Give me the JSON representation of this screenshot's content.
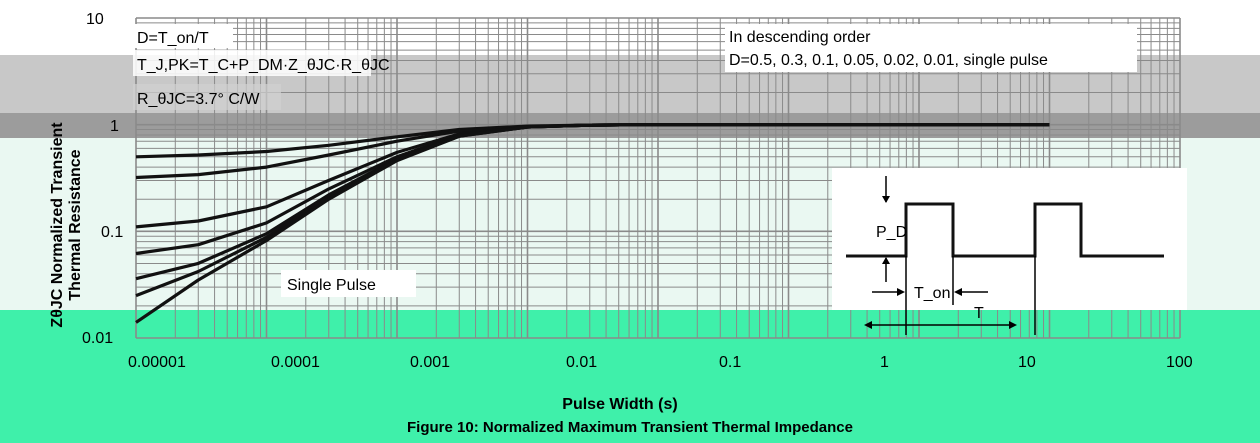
{
  "chart_data": {
    "type": "line",
    "title": "",
    "caption": "Figure 10: Normalized Maximum Transient Thermal Impedance",
    "xlabel": "Pulse Width (s)",
    "ylabel_line1": "ZθJC Normalized Transient",
    "ylabel_line2": "Thermal Resistance",
    "x_scale": "log",
    "y_scale": "log",
    "xlim": [
      1e-05,
      1000
    ],
    "ylim": [
      0.01,
      10
    ],
    "x_tick_labels": [
      "0.00001",
      "0.0001",
      "0.001",
      "0.01",
      "0.1",
      "1",
      "10",
      "100"
    ],
    "x_tick_values": [
      1e-05,
      0.0001,
      0.001,
      0.01,
      0.1,
      1,
      10,
      100
    ],
    "y_tick_labels": [
      "0.01",
      "0.1",
      "1",
      "10"
    ],
    "y_tick_values": [
      0.01,
      0.1,
      1,
      10
    ],
    "grid": true,
    "annotations": {
      "duty_definition": "D=T_on/T",
      "junction_formula": "T_J,PK=T_C+P_DM·Z_θJC·R_θJC",
      "r_theta": "R_θJC=3.7° C/W",
      "order_line1": "In descending order",
      "order_line2": "D=0.5, 0.3, 0.1, 0.05, 0.02, 0.01, single pulse",
      "single_pulse": "Single Pulse",
      "pd_label": "P_D",
      "ton_label": "T_on",
      "t_label": "T"
    },
    "series": [
      {
        "x": [
          1e-05,
          3e-05,
          0.0001,
          0.0003,
          0.001,
          0.003,
          0.01,
          0.03,
          0.1,
          1,
          10,
          100
        ],
        "y": [
          0.5,
          0.52,
          0.56,
          0.64,
          0.77,
          0.9,
          0.97,
          0.99,
          1.0,
          1.0,
          1.0,
          1.0
        ]
      },
      {
        "x": [
          1e-05,
          3e-05,
          0.0001,
          0.0003,
          0.001,
          0.003,
          0.01,
          0.03,
          0.1,
          1,
          10,
          100
        ],
        "y": [
          0.32,
          0.34,
          0.4,
          0.52,
          0.7,
          0.87,
          0.96,
          0.99,
          1.0,
          1.0,
          1.0,
          1.0
        ]
      },
      {
        "x": [
          1e-05,
          3e-05,
          0.0001,
          0.0003,
          0.001,
          0.003,
          0.01,
          0.03,
          0.1,
          1,
          10,
          100
        ],
        "y": [
          0.11,
          0.125,
          0.17,
          0.3,
          0.55,
          0.82,
          0.95,
          0.99,
          1.0,
          1.0,
          1.0,
          1.0
        ]
      },
      {
        "x": [
          1e-05,
          3e-05,
          0.0001,
          0.0003,
          0.001,
          0.003,
          0.01,
          0.03,
          0.1,
          1,
          10,
          100
        ],
        "y": [
          0.062,
          0.075,
          0.12,
          0.25,
          0.5,
          0.8,
          0.95,
          0.99,
          1.0,
          1.0,
          1.0,
          1.0
        ]
      },
      {
        "x": [
          1e-05,
          3e-05,
          0.0001,
          0.0003,
          0.001,
          0.003,
          0.01,
          0.03,
          0.1,
          1,
          10,
          100
        ],
        "y": [
          0.036,
          0.05,
          0.095,
          0.22,
          0.48,
          0.79,
          0.95,
          0.99,
          1.0,
          1.0,
          1.0,
          1.0
        ]
      },
      {
        "x": [
          1e-05,
          3e-05,
          0.0001,
          0.0003,
          0.001,
          0.003,
          0.01,
          0.03,
          0.1,
          1,
          10,
          100
        ],
        "y": [
          0.025,
          0.042,
          0.088,
          0.21,
          0.47,
          0.78,
          0.95,
          0.99,
          1.0,
          1.0,
          1.0,
          1.0
        ]
      },
      {
        "x": [
          1e-05,
          3e-05,
          0.0001,
          0.0003,
          0.001,
          0.003,
          0.01,
          0.03,
          0.1,
          1,
          10,
          100
        ],
        "y": [
          0.014,
          0.035,
          0.082,
          0.2,
          0.46,
          0.78,
          0.95,
          0.99,
          1.0,
          1.0,
          1.0,
          1.0
        ]
      }
    ],
    "colors": {
      "curve": "#111111",
      "grid": "#8a8a8a",
      "band_top": "#bdbdbd",
      "band_mid": "#d9d9d9",
      "band_bottom": "#3df0a8",
      "band_pale": "#e8f7f0"
    }
  }
}
